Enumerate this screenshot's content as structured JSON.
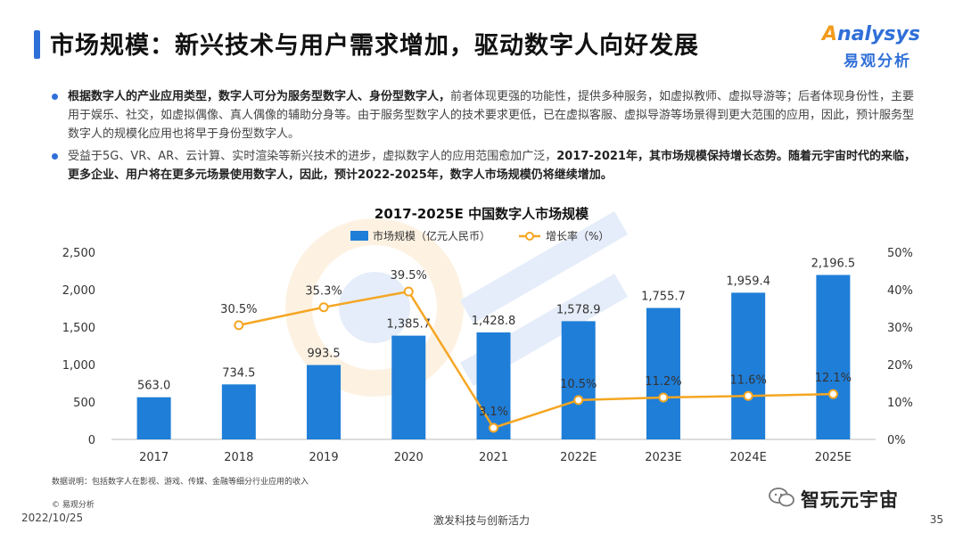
{
  "header": {
    "title": "市场规模：新兴技术与用户需求增加，驱动数字人向好发展",
    "logo_main": "nalysys",
    "logo_initial": "A",
    "logo_sub": "易观分析"
  },
  "bullets": [
    {
      "bold": "根据数字人的产业应用类型，数字人可分为服务型数字人、身份型数字人，",
      "text": "前者体现更强的功能性，提供多种服务，如虚拟教师、虚拟导游等；后者体现身份性，主要用于娱乐、社交，如虚拟偶像、真人偶像的辅助分身等。由于服务型数字人的技术要求更低，已在虚拟客服、虚拟导游等场景得到更大范围的应用，因此，预计服务型数字人的规模化应用也将早于身份型数字人。"
    },
    {
      "text": "受益于5G、VR、AR、云计算、实时渲染等新兴技术的进步，虚拟数字人的应用范围愈加广泛，",
      "bold": "2017-2021年，其市场规模保持增长态势。随着元宇宙时代的来临，更多企业、用户将在更多元场景使用数字人，因此，预计2022-2025年，数字人市场规模仍将继续增加。"
    }
  ],
  "chart_data": {
    "type": "bar",
    "title": "2017-2025E 中国数字人市场规模",
    "categories": [
      "2017",
      "2018",
      "2019",
      "2020",
      "2021",
      "2022E",
      "2023E",
      "2024E",
      "2025E"
    ],
    "series": [
      {
        "name": "市场规模（亿元人民币）",
        "type": "bar",
        "axis": "left",
        "values": [
          563.0,
          734.5,
          993.5,
          1385.7,
          1428.8,
          1578.9,
          1755.7,
          1959.4,
          2196.5
        ],
        "labels": [
          "563.0",
          "734.5",
          "993.5",
          "1,385.7",
          "1,428.8",
          "1,578.9",
          "1,755.7",
          "1,959.4",
          "2,196.5"
        ]
      },
      {
        "name": "增长率（%）",
        "type": "line",
        "axis": "right",
        "values": [
          null,
          30.5,
          35.3,
          39.5,
          3.1,
          10.5,
          11.2,
          11.6,
          12.1
        ],
        "labels": [
          "",
          "30.5%",
          "35.3%",
          "39.5%",
          "3.1%",
          "10.5%",
          "11.2%",
          "11.6%",
          "12.1%"
        ]
      }
    ],
    "y_left": {
      "min": 0,
      "max": 2500,
      "ticks": [
        "0",
        "500",
        "1,000",
        "1,500",
        "2,000",
        "2,500"
      ]
    },
    "y_right": {
      "min": 0,
      "max": 50,
      "ticks": [
        "0%",
        "10%",
        "20%",
        "30%",
        "40%",
        "50%"
      ]
    },
    "legend_position": "top-center",
    "grid": false
  },
  "colors": {
    "bar": "#1f7ed8",
    "line": "#f5a623",
    "accent": "#2f6fd8"
  },
  "footer": {
    "note": "数据说明：包括数字人在影视、游戏、传媒、金融等细分行业应用的收入",
    "source": "© 易观分析",
    "date": "2022/10/25",
    "tagline": "激发科技与创新活力",
    "page": "35",
    "wechat_name": "智玩元宇宙"
  }
}
